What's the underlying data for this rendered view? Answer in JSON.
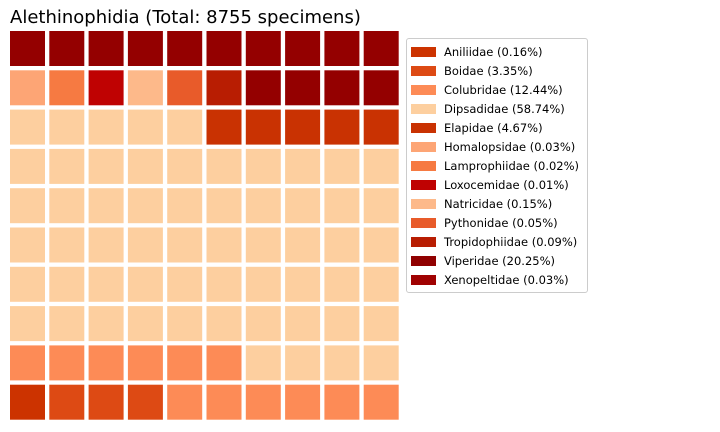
{
  "chart_data": {
    "type": "waffle",
    "title": "Alethinophidia (Total: 8755 specimens)",
    "grid": {
      "rows": 10,
      "columns": 10
    },
    "legend": {
      "placement": "right",
      "entries": [
        {
          "label": "Aniliidae (0.16%)",
          "color": "#cc3300"
        },
        {
          "label": "Boidae (3.35%)",
          "color": "#dd4a14"
        },
        {
          "label": "Colubridae (12.44%)",
          "color": "#fd8b56"
        },
        {
          "label": "Dipsadidae (58.74%)",
          "color": "#fdcf9f"
        },
        {
          "label": "Elapidae (4.67%)",
          "color": "#c93202"
        },
        {
          "label": "Homalopsidae (0.03%)",
          "color": "#fda575"
        },
        {
          "label": "Lamprophiidae (0.02%)",
          "color": "#f67a42"
        },
        {
          "label": "Loxocemidae (0.01%)",
          "color": "#bf0202"
        },
        {
          "label": "Natricidae (0.15%)",
          "color": "#fdb98a"
        },
        {
          "label": "Pythonidae (0.05%)",
          "color": "#e85b2a"
        },
        {
          "label": "Tropidophiidae (0.09%)",
          "color": "#b81d02"
        },
        {
          "label": "Viperidae (20.25%)",
          "color": "#900000"
        },
        {
          "label": "Xenopeltidae (0.03%)",
          "color": "#a00202"
        }
      ]
    },
    "cells": [
      [
        "#940000",
        "#940000",
        "#940000",
        "#940000",
        "#940000",
        "#940000",
        "#940000",
        "#940000",
        "#940000",
        "#940000"
      ],
      [
        "#fda575",
        "#f67a42",
        "#bf0202",
        "#fdb98a",
        "#e85b2a",
        "#b81d02",
        "#940000",
        "#940000",
        "#940000",
        "#940000"
      ],
      [
        "#fdcf9f",
        "#fdcf9f",
        "#fdcf9f",
        "#fdcf9f",
        "#fdcf9f",
        "#c93202",
        "#c93202",
        "#c93202",
        "#c93202",
        "#c93202"
      ],
      [
        "#fdcf9f",
        "#fdcf9f",
        "#fdcf9f",
        "#fdcf9f",
        "#fdcf9f",
        "#fdcf9f",
        "#fdcf9f",
        "#fdcf9f",
        "#fdcf9f",
        "#fdcf9f"
      ],
      [
        "#fdcf9f",
        "#fdcf9f",
        "#fdcf9f",
        "#fdcf9f",
        "#fdcf9f",
        "#fdcf9f",
        "#fdcf9f",
        "#fdcf9f",
        "#fdcf9f",
        "#fdcf9f"
      ],
      [
        "#fdcf9f",
        "#fdcf9f",
        "#fdcf9f",
        "#fdcf9f",
        "#fdcf9f",
        "#fdcf9f",
        "#fdcf9f",
        "#fdcf9f",
        "#fdcf9f",
        "#fdcf9f"
      ],
      [
        "#fdcf9f",
        "#fdcf9f",
        "#fdcf9f",
        "#fdcf9f",
        "#fdcf9f",
        "#fdcf9f",
        "#fdcf9f",
        "#fdcf9f",
        "#fdcf9f",
        "#fdcf9f"
      ],
      [
        "#fdcf9f",
        "#fdcf9f",
        "#fdcf9f",
        "#fdcf9f",
        "#fdcf9f",
        "#fdcf9f",
        "#fdcf9f",
        "#fdcf9f",
        "#fdcf9f",
        "#fdcf9f"
      ],
      [
        "#fd8b56",
        "#fd8b56",
        "#fd8b56",
        "#fd8b56",
        "#fd8b56",
        "#fd8b56",
        "#fdcf9f",
        "#fdcf9f",
        "#fdcf9f",
        "#fdcf9f"
      ],
      [
        "#cc3300",
        "#dd4a14",
        "#dd4a14",
        "#dd4a14",
        "#fd8b56",
        "#fd8b56",
        "#fd8b56",
        "#fd8b56",
        "#fd8b56",
        "#fd8b56"
      ]
    ]
  }
}
